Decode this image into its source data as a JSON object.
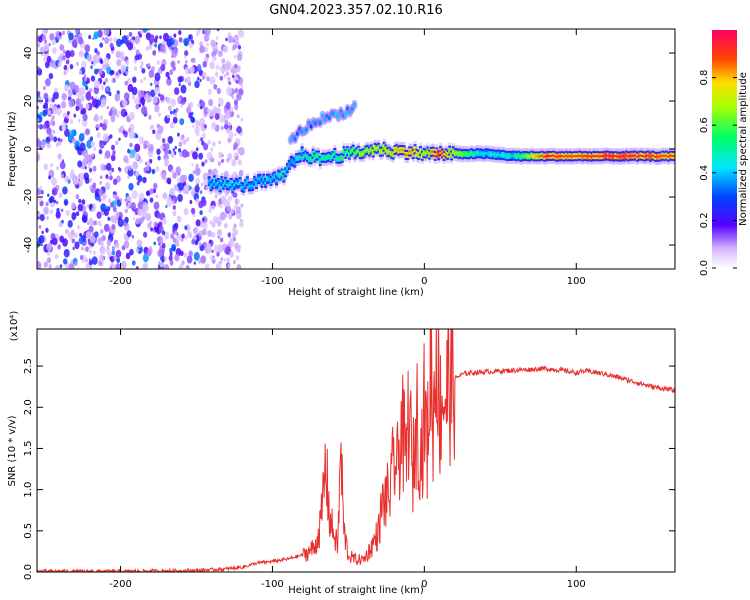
{
  "title": "GN04.2023.357.02.10.R16",
  "chart_data": [
    {
      "type": "heatmap",
      "name": "spectrogram",
      "xlabel": "Height of straight line (km)",
      "ylabel": "Frequency (Hz)",
      "xlim": [
        -255,
        165
      ],
      "ylim": [
        -50,
        50
      ],
      "xticks": [
        -200,
        -100,
        0,
        100
      ],
      "yticks": [
        -40,
        -20,
        0,
        20,
        40
      ],
      "colorbar": {
        "label": "Normalized spectral amplitude",
        "range": [
          0,
          1
        ],
        "ticks": [
          "0.0",
          "0.2",
          "0.4",
          "0.6",
          "0.8"
        ]
      },
      "noise_region_x": [
        -255,
        -130
      ],
      "signal_track": {
        "x": [
          -142,
          -130,
          -120,
          -110,
          -100,
          -92,
          -88,
          -80,
          -70,
          -60,
          -50,
          -40,
          -30,
          -20,
          -10,
          0,
          10,
          20,
          40,
          60,
          80,
          100,
          120,
          140,
          165
        ],
        "y": [
          -14,
          -15,
          -15,
          -14,
          -13,
          -11,
          -6,
          -2,
          -4,
          -3,
          -2,
          -1,
          0,
          -1,
          -1,
          -2,
          -2,
          -2,
          -2,
          -3,
          -3,
          -3,
          -3,
          -3,
          -3
        ],
        "amplitude": [
          0.4,
          0.45,
          0.42,
          0.4,
          0.45,
          0.5,
          0.35,
          0.5,
          0.55,
          0.55,
          0.6,
          0.7,
          0.75,
          0.8,
          0.85,
          0.75,
          0.95,
          0.7,
          0.45,
          0.5,
          0.95,
          0.9,
          0.95,
          0.95,
          0.9
        ]
      },
      "branch_upper": {
        "x": [
          -88,
          -80,
          -70,
          -60,
          -50,
          -45
        ],
        "y": [
          4,
          8,
          12,
          14,
          16,
          18
        ]
      }
    },
    {
      "type": "line",
      "name": "snr",
      "xlabel": "Height of straight line (km)",
      "ylabel": "SNR (10 * v/v)",
      "y_multiplier": "(x10⁴)",
      "xlim": [
        -255,
        165
      ],
      "ylim": [
        0,
        2.95
      ],
      "xticks": [
        -200,
        -100,
        0,
        100
      ],
      "yticks": [
        "0.0",
        "0.5",
        "1.0",
        "1.5",
        "2.0",
        "2.5"
      ],
      "color": "#e8312f",
      "series": [
        {
          "x": [
            -255,
            -200,
            -150,
            -130,
            -120,
            -110,
            -100,
            -90,
            -80,
            -72,
            -68,
            -65,
            -62,
            -60,
            -57,
            -55,
            -53,
            -50,
            -45,
            -40,
            -35,
            -30,
            -28,
            -25,
            -22,
            -20,
            -18,
            -15,
            -12,
            -10,
            -8,
            -5,
            -2,
            0,
            2,
            4,
            6,
            8,
            10,
            12,
            14,
            16,
            20,
            25,
            30,
            40,
            50,
            60,
            70,
            80,
            90,
            100,
            105,
            110,
            120,
            130,
            140,
            150,
            160,
            165
          ],
          "y": [
            0.0,
            0.0,
            0.01,
            0.03,
            0.05,
            0.1,
            0.12,
            0.15,
            0.2,
            0.3,
            0.6,
            1.3,
            0.6,
            0.5,
            0.3,
            1.5,
            0.5,
            0.2,
            0.15,
            0.15,
            0.3,
            0.5,
            0.8,
            0.9,
            1.0,
            1.4,
            1.2,
            1.8,
            1.3,
            2.1,
            1.1,
            1.9,
            1.4,
            2.0,
            1.5,
            2.6,
            1.8,
            3.0,
            1.9,
            2.2,
            2.1,
            2.3,
            2.35,
            2.4,
            2.42,
            2.43,
            2.44,
            2.45,
            2.46,
            2.47,
            2.45,
            2.42,
            2.44,
            2.43,
            2.4,
            2.35,
            2.3,
            2.25,
            2.22,
            2.2
          ]
        }
      ]
    }
  ]
}
